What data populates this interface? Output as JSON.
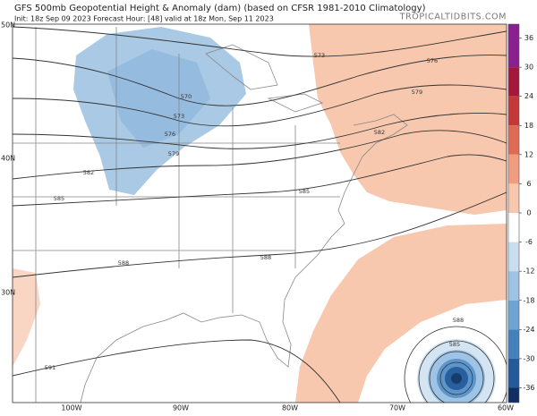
{
  "header": {
    "title": "GFS 500mb Geopotential Height & Anomaly (dam) (based on CFSR 1981-2010 Climatology)",
    "subtitle": "Init: 18z Sep 09 2023   Forecast Hour: [48]   valid at 18z Mon, Sep 11 2023",
    "website": "TROPICALTIDBITS.COM"
  },
  "latitude_labels": [
    "50N",
    "40N",
    "30N"
  ],
  "longitude_labels": [
    "100W",
    "90W",
    "80W",
    "70W",
    "60W"
  ],
  "contour_labels": [
    "573",
    "576",
    "579",
    "570",
    "573",
    "576",
    "579",
    "582",
    "585",
    "585",
    "588",
    "588",
    "582",
    "588",
    "585",
    "591"
  ],
  "colorbar": {
    "ticks": [
      36,
      30,
      24,
      18,
      12,
      6,
      0,
      -6,
      -12,
      -18,
      -24,
      -30,
      -36
    ]
  }
}
